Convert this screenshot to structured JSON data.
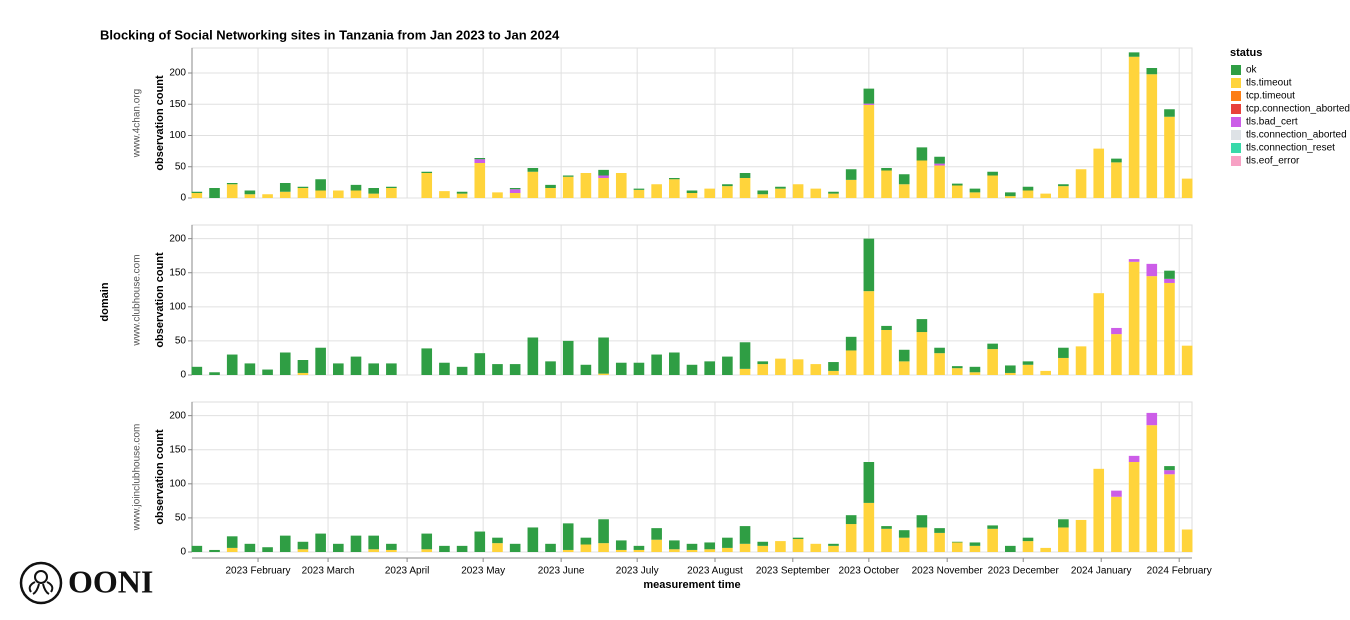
{
  "title": "Blocking of Social Networking sites in Tanzania from Jan 2023 to Jan 2024",
  "x_label": "measurement time",
  "facet_label": "domain",
  "legend": {
    "title": "status",
    "items": [
      {
        "name": "ok",
        "color": "#2f9e44"
      },
      {
        "name": "tls.timeout",
        "color": "#ffd43b"
      },
      {
        "name": "tcp.timeout",
        "color": "#fd7e14"
      },
      {
        "name": "tcp.connection_aborted",
        "color": "#e8403a"
      },
      {
        "name": "tls.bad_cert",
        "color": "#cc5de8"
      },
      {
        "name": "tls.connection_aborted",
        "color": "#dee2e6"
      },
      {
        "name": "tls.connection_reset",
        "color": "#38d9a9"
      },
      {
        "name": "tls.eof_error",
        "color": "#f7a1c4"
      }
    ]
  },
  "logo": {
    "text": "OONI"
  },
  "chart_data": [
    {
      "type": "bar",
      "stacked": true,
      "facet": "www.4chan.org",
      "y_label": "observation count",
      "grid": true,
      "categories": [
        null,
        null,
        null,
        null,
        null,
        null,
        null,
        null,
        null,
        null,
        null,
        null,
        null,
        null,
        null,
        null,
        null,
        null,
        null,
        null,
        null,
        null,
        null,
        null,
        null,
        null,
        null,
        null,
        null,
        null,
        null,
        null,
        null,
        null,
        null,
        null,
        null,
        null,
        null,
        null,
        null,
        null,
        null,
        null,
        null,
        null,
        null,
        null,
        null,
        null,
        null,
        null,
        null,
        null,
        null,
        null,
        null
      ],
      "ylim": [
        0,
        240
      ],
      "yticks": [
        0,
        50,
        100,
        150,
        200
      ],
      "series": [
        {
          "name": "tls.timeout",
          "color": "#ffd43b",
          "values": [
            8,
            0,
            22,
            6,
            6,
            10,
            16,
            12,
            12,
            12,
            7,
            16,
            0,
            40,
            11,
            7,
            56,
            9,
            8,
            42,
            16,
            34,
            40,
            32,
            40,
            13,
            22,
            30,
            8,
            15,
            19,
            32,
            6,
            15,
            22,
            15,
            7,
            29,
            149,
            44,
            22,
            60,
            52,
            20,
            9,
            36,
            3,
            12,
            7,
            19,
            46,
            79,
            57,
            226,
            198,
            130,
            31
          ]
        },
        {
          "name": "tls.bad_cert",
          "color": "#cc5de8",
          "values": [
            0,
            0,
            0,
            0,
            0,
            0,
            0,
            0,
            0,
            0,
            0,
            0,
            0,
            0,
            0,
            0,
            6,
            0,
            6,
            0,
            0,
            0,
            0,
            4,
            0,
            0,
            0,
            0,
            0,
            0,
            0,
            0,
            0,
            0,
            0,
            0,
            0,
            0,
            2,
            0,
            0,
            0,
            3,
            0,
            0,
            0,
            0,
            0,
            0,
            0,
            0,
            0,
            0,
            0,
            0,
            0,
            0
          ]
        },
        {
          "name": "ok",
          "color": "#2f9e44",
          "values": [
            2,
            16,
            2,
            6,
            0,
            14,
            2,
            18,
            0,
            9,
            9,
            2,
            0,
            2,
            0,
            3,
            2,
            0,
            2,
            6,
            5,
            2,
            0,
            9,
            0,
            2,
            0,
            2,
            4,
            0,
            3,
            8,
            6,
            3,
            0,
            0,
            3,
            17,
            24,
            4,
            16,
            21,
            11,
            3,
            6,
            6,
            6,
            6,
            0,
            3,
            0,
            0,
            6,
            7,
            10,
            12,
            0
          ]
        }
      ]
    },
    {
      "type": "bar",
      "stacked": true,
      "facet": "www.clubhouse.com",
      "y_label": "observation count",
      "grid": true,
      "categories": [
        null,
        null,
        null,
        null,
        null,
        null,
        null,
        null,
        null,
        null,
        null,
        null,
        null,
        null,
        null,
        null,
        null,
        null,
        null,
        null,
        null,
        null,
        null,
        null,
        null,
        null,
        null,
        null,
        null,
        null,
        null,
        null,
        null,
        null,
        null,
        null,
        null,
        null,
        null,
        null,
        null,
        null,
        null,
        null,
        null,
        null,
        null,
        null,
        null,
        null,
        null,
        null,
        null,
        null,
        null,
        null,
        null
      ],
      "ylim": [
        0,
        220
      ],
      "yticks": [
        0,
        50,
        100,
        150,
        200
      ],
      "series": [
        {
          "name": "tls.timeout",
          "color": "#ffd43b",
          "values": [
            0,
            0,
            0,
            0,
            0,
            0,
            3,
            0,
            0,
            0,
            0,
            0,
            0,
            0,
            0,
            0,
            0,
            0,
            0,
            0,
            0,
            0,
            0,
            2,
            0,
            0,
            0,
            0,
            0,
            0,
            0,
            9,
            16,
            24,
            23,
            16,
            6,
            36,
            123,
            66,
            20,
            63,
            32,
            10,
            4,
            38,
            3,
            15,
            6,
            25,
            42,
            120,
            60,
            166,
            145,
            135,
            43
          ]
        },
        {
          "name": "tls.bad_cert",
          "color": "#cc5de8",
          "values": [
            0,
            0,
            0,
            0,
            0,
            0,
            0,
            0,
            0,
            0,
            0,
            0,
            0,
            0,
            0,
            0,
            0,
            0,
            0,
            0,
            0,
            0,
            0,
            0,
            0,
            0,
            0,
            0,
            0,
            0,
            0,
            0,
            0,
            0,
            0,
            0,
            0,
            0,
            0,
            0,
            0,
            0,
            0,
            0,
            0,
            0,
            0,
            0,
            0,
            0,
            0,
            0,
            9,
            4,
            18,
            6,
            0
          ]
        },
        {
          "name": "ok",
          "color": "#2f9e44",
          "values": [
            12,
            4,
            30,
            17,
            8,
            33,
            19,
            40,
            17,
            27,
            17,
            17,
            0,
            39,
            18,
            12,
            32,
            16,
            16,
            55,
            20,
            50,
            15,
            53,
            18,
            18,
            30,
            33,
            15,
            20,
            27,
            39,
            4,
            0,
            0,
            0,
            13,
            20,
            77,
            6,
            17,
            19,
            8,
            3,
            8,
            8,
            11,
            5,
            0,
            15,
            0,
            0,
            0,
            0,
            0,
            12,
            0
          ]
        }
      ]
    },
    {
      "type": "bar",
      "stacked": true,
      "facet": "www.joinclubhouse.com",
      "y_label": "observation count",
      "grid": true,
      "categories": [
        null,
        null,
        null,
        null,
        null,
        null,
        null,
        null,
        null,
        null,
        null,
        null,
        null,
        null,
        null,
        null,
        null,
        null,
        null,
        null,
        null,
        null,
        null,
        null,
        null,
        null,
        null,
        null,
        null,
        null,
        null,
        null,
        null,
        null,
        null,
        null,
        null,
        null,
        null,
        null,
        null,
        null,
        null,
        null,
        null,
        null,
        null,
        null,
        null,
        null,
        null,
        null,
        null,
        null,
        null,
        null,
        null
      ],
      "ylim": [
        0,
        220
      ],
      "yticks": [
        0,
        50,
        100,
        150,
        200
      ],
      "xticks": [
        {
          "value": 3.46,
          "label": "2023 February"
        },
        {
          "value": 7.42,
          "label": "2023 March"
        },
        {
          "value": 11.89,
          "label": "2023 April"
        },
        {
          "value": 16.19,
          "label": "2023 May"
        },
        {
          "value": 20.6,
          "label": "2023 June"
        },
        {
          "value": 24.9,
          "label": "2023 July"
        },
        {
          "value": 29.3,
          "label": "2023 August"
        },
        {
          "value": 33.7,
          "label": "2023 September"
        },
        {
          "value": 38.0,
          "label": "2023 October"
        },
        {
          "value": 42.43,
          "label": "2023 November"
        },
        {
          "value": 46.73,
          "label": "2023 December"
        },
        {
          "value": 51.14,
          "label": "2024 January"
        },
        {
          "value": 55.55,
          "label": "2024 February"
        }
      ],
      "series": [
        {
          "name": "tls.timeout",
          "color": "#ffd43b",
          "values": [
            0,
            0,
            6,
            0,
            0,
            0,
            4,
            0,
            0,
            0,
            4,
            3,
            0,
            4,
            0,
            0,
            0,
            13,
            0,
            0,
            0,
            3,
            11,
            13,
            3,
            3,
            18,
            4,
            3,
            4,
            6,
            12,
            9,
            16,
            19,
            12,
            9,
            41,
            72,
            34,
            21,
            36,
            28,
            14,
            9,
            34,
            0,
            16,
            6,
            36,
            47,
            122,
            81,
            132,
            186,
            114,
            33
          ]
        },
        {
          "name": "tls.bad_cert",
          "color": "#cc5de8",
          "values": [
            0,
            0,
            0,
            0,
            0,
            0,
            0,
            0,
            0,
            0,
            0,
            0,
            0,
            0,
            0,
            0,
            0,
            0,
            0,
            0,
            0,
            0,
            0,
            0,
            0,
            0,
            0,
            0,
            0,
            0,
            0,
            0,
            0,
            0,
            0,
            0,
            0,
            0,
            0,
            0,
            0,
            0,
            0,
            0,
            0,
            0,
            0,
            0,
            0,
            0,
            0,
            0,
            9,
            9,
            18,
            6,
            0
          ]
        },
        {
          "name": "ok",
          "color": "#2f9e44",
          "values": [
            9,
            3,
            17,
            12,
            7,
            24,
            11,
            27,
            12,
            24,
            20,
            9,
            0,
            23,
            9,
            9,
            30,
            8,
            12,
            36,
            12,
            39,
            10,
            35,
            14,
            6,
            17,
            13,
            9,
            10,
            15,
            26,
            6,
            0,
            2,
            0,
            3,
            13,
            60,
            4,
            11,
            18,
            7,
            1,
            5,
            5,
            9,
            5,
            0,
            12,
            0,
            0,
            0,
            0,
            0,
            6,
            0
          ]
        }
      ]
    }
  ]
}
